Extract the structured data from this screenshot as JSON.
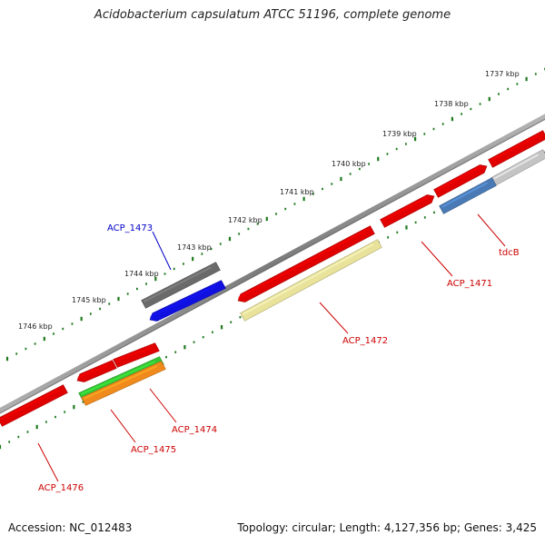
{
  "title": "Acidobacterium capsulatum ATCC 51196, complete genome",
  "footer": {
    "accession": "Accession: NC_012483",
    "summary": "Topology: circular; Length: 4,127,356 bp; Genes: 3,425"
  },
  "colors": {
    "backbone": "#808080",
    "tick": "#1f7a1f",
    "label_red": "#cc0000",
    "label_blue": "#0000cc"
  },
  "kbp_ticks": [
    "1737 kbp",
    "1738 kbp",
    "1739 kbp",
    "1740 kbp",
    "1741 kbp",
    "1742 kbp",
    "1743 kbp",
    "1744 kbp",
    "1745 kbp",
    "1746 kbp"
  ],
  "genes": [
    {
      "name": "ACP_1471",
      "color": "#e00000"
    },
    {
      "name": "tdcB",
      "color": "#4a7ab5"
    },
    {
      "name": "ACP_1472",
      "color": "#e8e29a"
    },
    {
      "name": "ACP_1473",
      "color": "#1010e0"
    },
    {
      "name": "ACP_1474",
      "color": "#e00000"
    },
    {
      "name": "ACP_1475",
      "color": "#f08a1c"
    },
    {
      "name": "ACP_1476",
      "color": "#e00000"
    }
  ],
  "gene_labels": [
    {
      "text": "tdcB",
      "color": "#cc0000"
    },
    {
      "text": "ACP_1471",
      "color": "#cc0000"
    },
    {
      "text": "ACP_1472",
      "color": "#cc0000"
    },
    {
      "text": "ACP_1473",
      "color": "#0000cc"
    },
    {
      "text": "ACP_1474",
      "color": "#cc0000"
    },
    {
      "text": "ACP_1475",
      "color": "#cc0000"
    },
    {
      "text": "ACP_1476",
      "color": "#cc0000"
    }
  ]
}
